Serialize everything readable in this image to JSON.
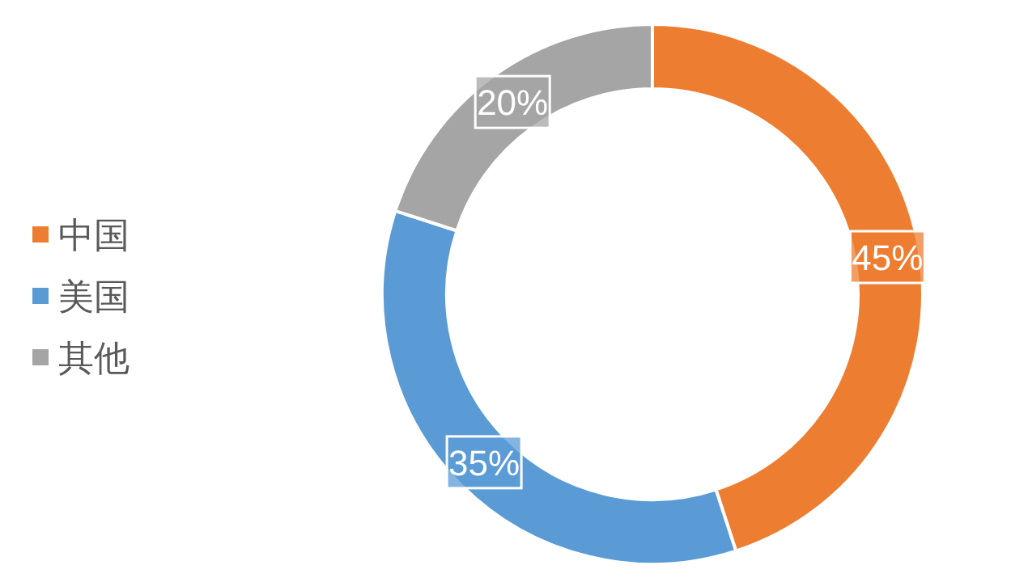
{
  "chart_data": {
    "type": "donut",
    "categories": [
      "中国",
      "美国",
      "其他"
    ],
    "values": [
      45,
      35,
      20
    ],
    "colors": [
      "#ed7d31",
      "#5b9bd5",
      "#a5a5a5"
    ],
    "value_labels": [
      "45%",
      "35%",
      "20%"
    ],
    "legend": "left"
  }
}
